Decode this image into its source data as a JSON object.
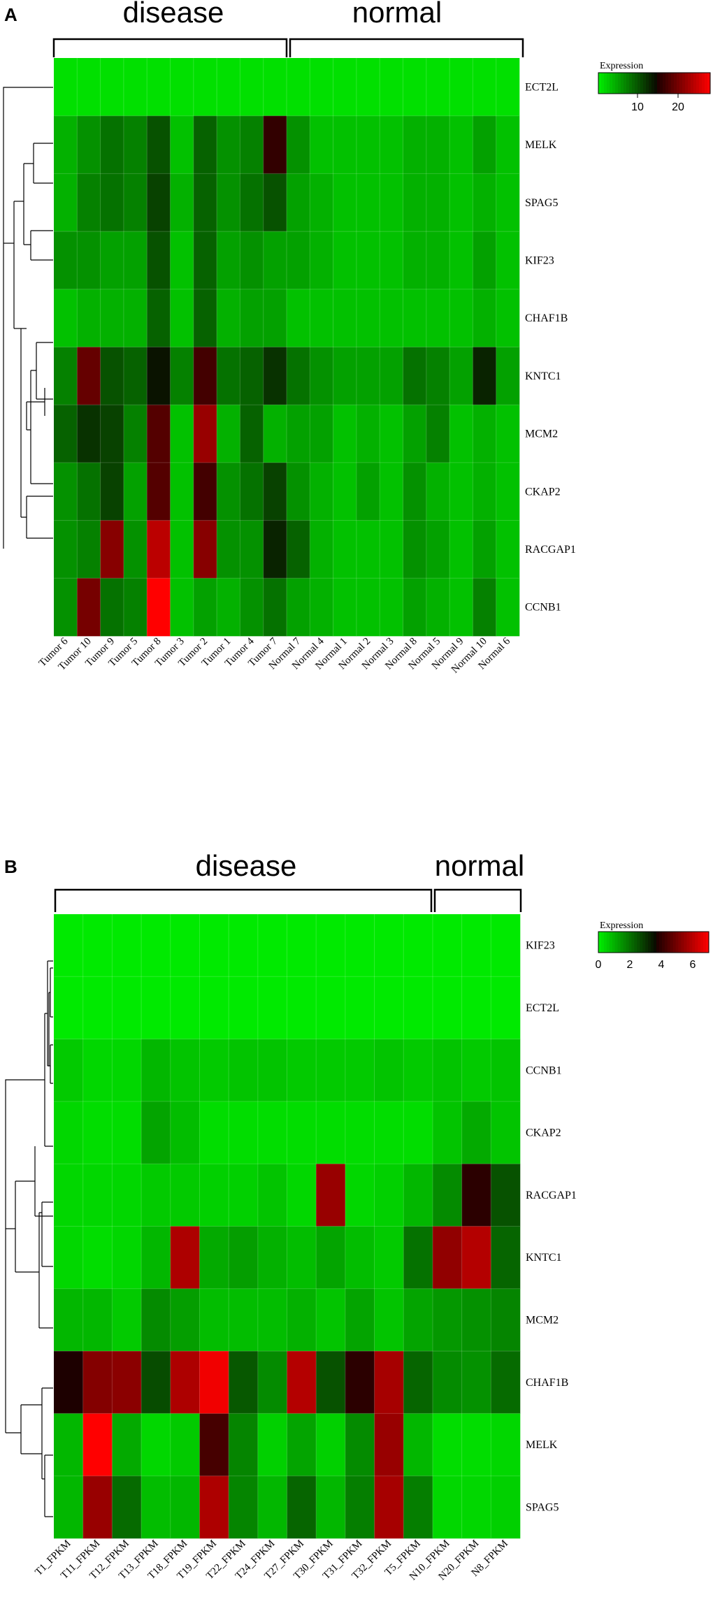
{
  "chart_data": [
    {
      "type": "heatmap",
      "panel": "A",
      "legend_title": "Expression",
      "legend_ticks": [
        10,
        20
      ],
      "value_range": [
        0,
        28
      ],
      "groups": [
        {
          "label": "disease",
          "count": 10
        },
        {
          "label": "normal",
          "count": 10
        }
      ],
      "columns": [
        "Tumor 6",
        "Tumor 10",
        "Tumor 9",
        "Tumor 5",
        "Tumor 8",
        "Tumor 3",
        "Tumor 2",
        "Tumor 1",
        "Tumor 4",
        "Tumor 7",
        "Normal 7",
        "Normal 4",
        "Normal 1",
        "Normal 2",
        "Normal 3",
        "Normal 8",
        "Normal 5",
        "Normal 9",
        "Normal 10",
        "Normal 6"
      ],
      "rows": [
        "ECT2L",
        "MELK",
        "SPAG5",
        "KIF23",
        "CHAF1B",
        "KNTC1",
        "MCM2",
        "CKAP2",
        "RACGAP1",
        "CCNB1"
      ],
      "values": [
        [
          1,
          1,
          1,
          1,
          1,
          1,
          1,
          1,
          1,
          1,
          1,
          1,
          1,
          1,
          1,
          1,
          1,
          1,
          1,
          1
        ],
        [
          4,
          6,
          8,
          7,
          10,
          3,
          9,
          6,
          7,
          16,
          6,
          3,
          3,
          3,
          3,
          4,
          4,
          3,
          5,
          3
        ],
        [
          4,
          7,
          8,
          7,
          11,
          4,
          9,
          6,
          8,
          10,
          5,
          4,
          3,
          3,
          3,
          4,
          4,
          3,
          4,
          3
        ],
        [
          6,
          6,
          5,
          5,
          10,
          3,
          9,
          5,
          6,
          5,
          5,
          4,
          3,
          3,
          3,
          4,
          4,
          3,
          5,
          3
        ],
        [
          3,
          4,
          4,
          4,
          9,
          3,
          9,
          4,
          5,
          5,
          3,
          3,
          3,
          3,
          3,
          3,
          3,
          3,
          4,
          3
        ],
        [
          7,
          19,
          10,
          9,
          14,
          7,
          17,
          8,
          9,
          12,
          8,
          6,
          5,
          5,
          5,
          8,
          7,
          5,
          13,
          5
        ],
        [
          9,
          12,
          11,
          7,
          18,
          3,
          22,
          4,
          9,
          4,
          5,
          5,
          3,
          4,
          3,
          5,
          7,
          3,
          4,
          3
        ],
        [
          6,
          8,
          11,
          5,
          18,
          3,
          17,
          6,
          8,
          11,
          6,
          4,
          3,
          5,
          3,
          6,
          4,
          3,
          4,
          3
        ],
        [
          6,
          7,
          21,
          6,
          24,
          3,
          21,
          6,
          6,
          13,
          9,
          4,
          3,
          3,
          3,
          6,
          5,
          3,
          5,
          3
        ],
        [
          6,
          20,
          8,
          7,
          28,
          3,
          5,
          4,
          6,
          8,
          5,
          4,
          3,
          3,
          3,
          5,
          4,
          3,
          7,
          3
        ]
      ]
    },
    {
      "type": "heatmap",
      "panel": "B",
      "legend_title": "Expression",
      "legend_ticks": [
        0,
        2,
        4,
        6
      ],
      "value_range": [
        0,
        7
      ],
      "groups": [
        {
          "label": "disease",
          "count": 13
        },
        {
          "label": "normal",
          "count": 3
        }
      ],
      "columns": [
        "T1_FPKM",
        "T11_FPKM",
        "T12_FPKM",
        "T13_FPKM",
        "T18_FPKM",
        "T19_FPKM",
        "T22_FPKM",
        "T24_FPKM",
        "T27_FPKM",
        "T30_FPKM",
        "T31_FPKM",
        "T32_FPKM",
        "T5_FPKM",
        "N10_FPKM",
        "N20_FPKM",
        "N8_FPKM"
      ],
      "rows": [
        "KIF23",
        "ECT2L",
        "CCNB1",
        "CKAP2",
        "RACGAP1",
        "KNTC1",
        "MCM2",
        "CHAF1B",
        "MELK",
        "SPAG5"
      ],
      "values": [
        [
          0.1,
          0.1,
          0.1,
          0.1,
          0.1,
          0.1,
          0.1,
          0.1,
          0.1,
          0.1,
          0.1,
          0.1,
          0.1,
          0.1,
          0.1,
          0.1
        ],
        [
          0.1,
          0.1,
          0.1,
          0.1,
          0.1,
          0.1,
          0.1,
          0.1,
          0.1,
          0.1,
          0.1,
          0.1,
          0.1,
          0.1,
          0.1,
          0.1
        ],
        [
          0.6,
          0.4,
          0.4,
          0.9,
          0.7,
          0.6,
          0.7,
          0.7,
          0.6,
          0.6,
          0.6,
          0.7,
          0.6,
          0.7,
          0.6,
          0.7
        ],
        [
          0.4,
          0.3,
          0.3,
          1.2,
          0.8,
          0.3,
          0.3,
          0.3,
          0.3,
          0.3,
          0.3,
          0.3,
          0.3,
          0.7,
          1.1,
          0.7
        ],
        [
          0.4,
          0.4,
          0.4,
          0.6,
          0.6,
          0.5,
          0.5,
          0.7,
          0.4,
          5.5,
          0.4,
          0.5,
          0.9,
          1.6,
          3.9,
          2.5
        ],
        [
          0.4,
          0.3,
          0.4,
          0.9,
          5.8,
          1.1,
          1.3,
          1.0,
          0.8,
          1.2,
          0.8,
          0.6,
          2.0,
          5.4,
          5.9,
          2.2
        ],
        [
          0.9,
          0.9,
          0.6,
          1.6,
          1.3,
          0.8,
          0.8,
          0.8,
          1.0,
          0.7,
          1.2,
          0.7,
          1.2,
          1.4,
          1.5,
          1.7
        ],
        [
          3.7,
          5.2,
          5.3,
          2.6,
          5.8,
          6.8,
          2.4,
          1.6,
          5.9,
          2.5,
          3.9,
          5.7,
          2.2,
          1.6,
          1.5,
          2.1
        ],
        [
          0.9,
          7.0,
          1.1,
          0.4,
          0.6,
          4.3,
          1.7,
          0.5,
          1.2,
          0.5,
          1.6,
          5.5,
          0.9,
          0.3,
          0.3,
          0.4
        ],
        [
          0.9,
          5.5,
          2.1,
          0.8,
          0.9,
          5.8,
          1.7,
          0.9,
          2.2,
          0.9,
          1.8,
          5.7,
          1.8,
          0.4,
          0.4,
          0.5
        ]
      ]
    }
  ]
}
